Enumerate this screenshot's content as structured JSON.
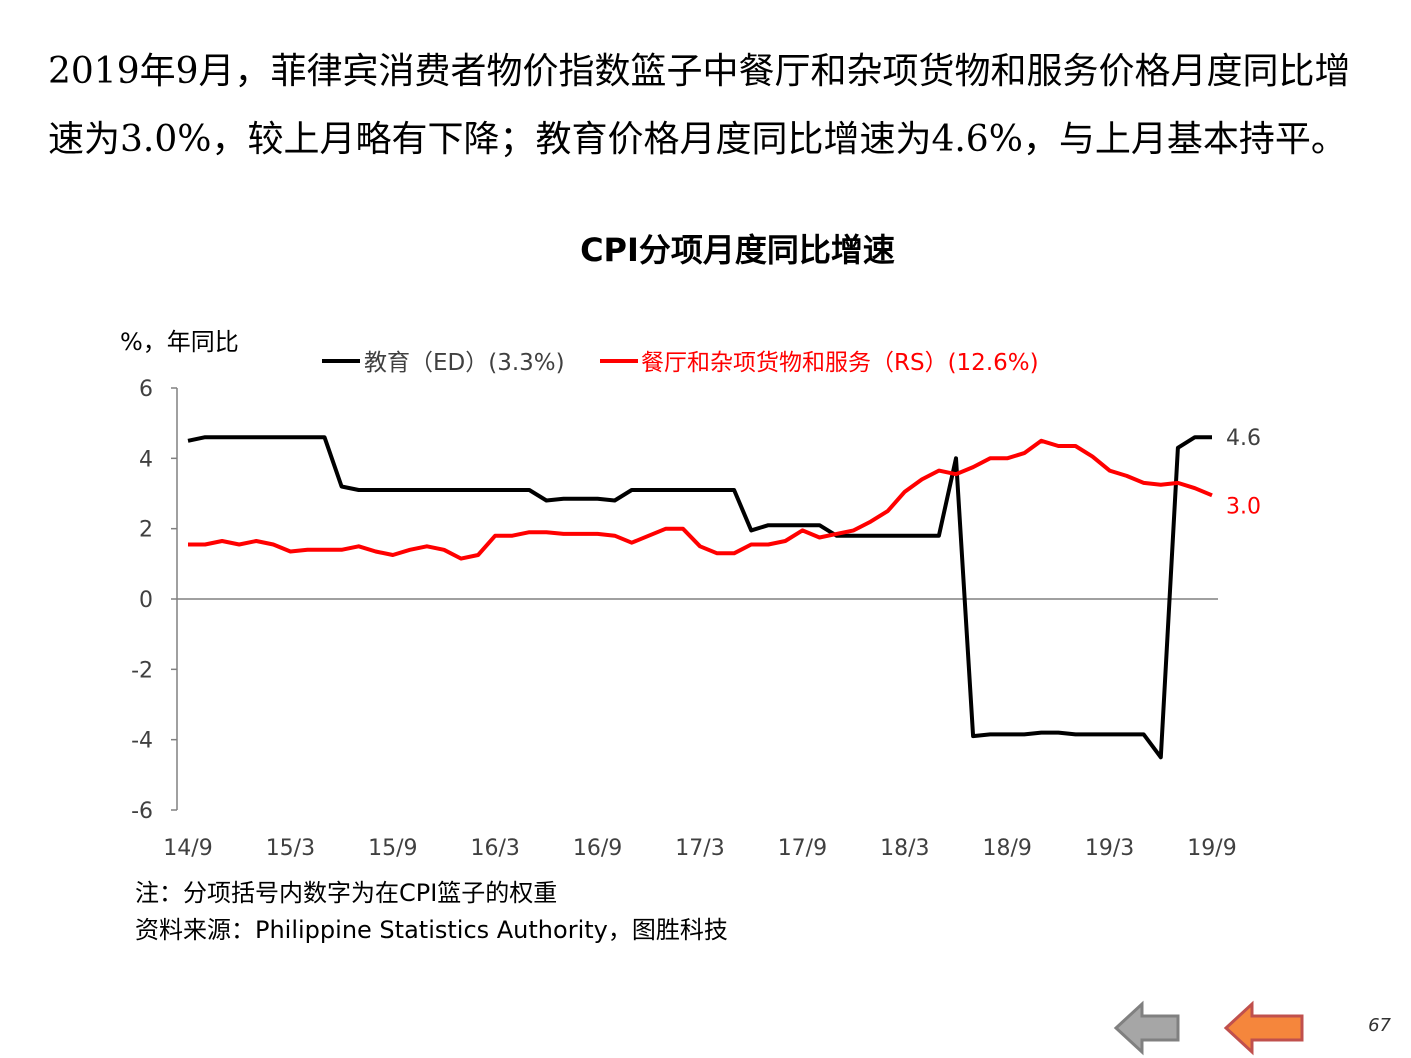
{
  "intro_text": "2019年9月，菲律宾消费者物价指数篮子中餐厅和杂项货物和服务价格月度同比增速为3.0%，较上月略有下降；教育价格月度同比增速为4.6%，与上月基本持平。",
  "page_number": "67",
  "note": "注：分项括号内数字为在CPI篮子的权重",
  "source": "资料来源：Philippine Statistics Authority，图胜科技",
  "nav": {
    "back_icon": "gray-left-arrow-icon",
    "prev_icon": "orange-left-arrow-icon"
  },
  "chart_data": {
    "type": "line",
    "title": "CPI分项月度同比增速",
    "ylabel": "%，年同比",
    "xlabel": "",
    "ylim": [
      -6,
      6
    ],
    "yticks": [
      -6,
      -4,
      -2,
      0,
      2,
      4,
      6
    ],
    "xticks": [
      "14/9",
      "15/3",
      "15/9",
      "16/3",
      "16/9",
      "17/3",
      "17/9",
      "18/3",
      "18/9",
      "19/3",
      "19/9"
    ],
    "x": [
      "14/9",
      "14/10",
      "14/11",
      "14/12",
      "15/1",
      "15/2",
      "15/3",
      "15/4",
      "15/5",
      "15/6",
      "15/7",
      "15/8",
      "15/9",
      "15/10",
      "15/11",
      "15/12",
      "16/1",
      "16/2",
      "16/3",
      "16/4",
      "16/5",
      "16/6",
      "16/7",
      "16/8",
      "16/9",
      "16/10",
      "16/11",
      "16/12",
      "17/1",
      "17/2",
      "17/3",
      "17/4",
      "17/5",
      "17/6",
      "17/7",
      "17/8",
      "17/9",
      "17/10",
      "17/11",
      "17/12",
      "18/1",
      "18/2",
      "18/3",
      "18/4",
      "18/5",
      "18/6",
      "18/7",
      "18/8",
      "18/9",
      "18/10",
      "18/11",
      "18/12",
      "19/1",
      "19/2",
      "19/3",
      "19/4",
      "19/5",
      "19/6",
      "19/7",
      "19/8",
      "19/9"
    ],
    "legend_position": "top",
    "grid": false,
    "series": [
      {
        "name": "教育（ED）(3.3%)",
        "color": "#000000",
        "end_label": "4.6",
        "values": [
          4.5,
          4.6,
          4.6,
          4.6,
          4.6,
          4.6,
          4.6,
          4.6,
          4.6,
          3.2,
          3.1,
          3.1,
          3.1,
          3.1,
          3.1,
          3.1,
          3.1,
          3.1,
          3.1,
          3.1,
          3.1,
          2.8,
          2.85,
          2.85,
          2.85,
          2.8,
          3.1,
          3.1,
          3.1,
          3.1,
          3.1,
          3.1,
          3.1,
          1.95,
          2.1,
          2.1,
          2.1,
          2.1,
          1.8,
          1.8,
          1.8,
          1.8,
          1.8,
          1.8,
          1.8,
          4.0,
          -3.9,
          -3.85,
          -3.85,
          -3.85,
          -3.8,
          -3.8,
          -3.85,
          -3.85,
          -3.85,
          -3.85,
          -3.85,
          -4.5,
          4.3,
          4.6,
          4.6
        ]
      },
      {
        "name": "餐厅和杂项货物和服务（RS）(12.6%)",
        "color": "#ff0000",
        "end_label": "3.0",
        "values": [
          1.55,
          1.55,
          1.65,
          1.55,
          1.65,
          1.55,
          1.35,
          1.4,
          1.4,
          1.4,
          1.5,
          1.35,
          1.25,
          1.4,
          1.5,
          1.4,
          1.15,
          1.25,
          1.8,
          1.8,
          1.9,
          1.9,
          1.85,
          1.85,
          1.85,
          1.8,
          1.6,
          1.8,
          2.0,
          2.0,
          1.5,
          1.3,
          1.3,
          1.55,
          1.55,
          1.65,
          1.95,
          1.75,
          1.85,
          1.95,
          2.2,
          2.5,
          3.05,
          3.4,
          3.65,
          3.55,
          3.75,
          4.0,
          4.0,
          4.15,
          4.5,
          4.35,
          4.35,
          4.05,
          3.65,
          3.5,
          3.3,
          3.25,
          3.3,
          3.15,
          2.95
        ]
      }
    ]
  }
}
